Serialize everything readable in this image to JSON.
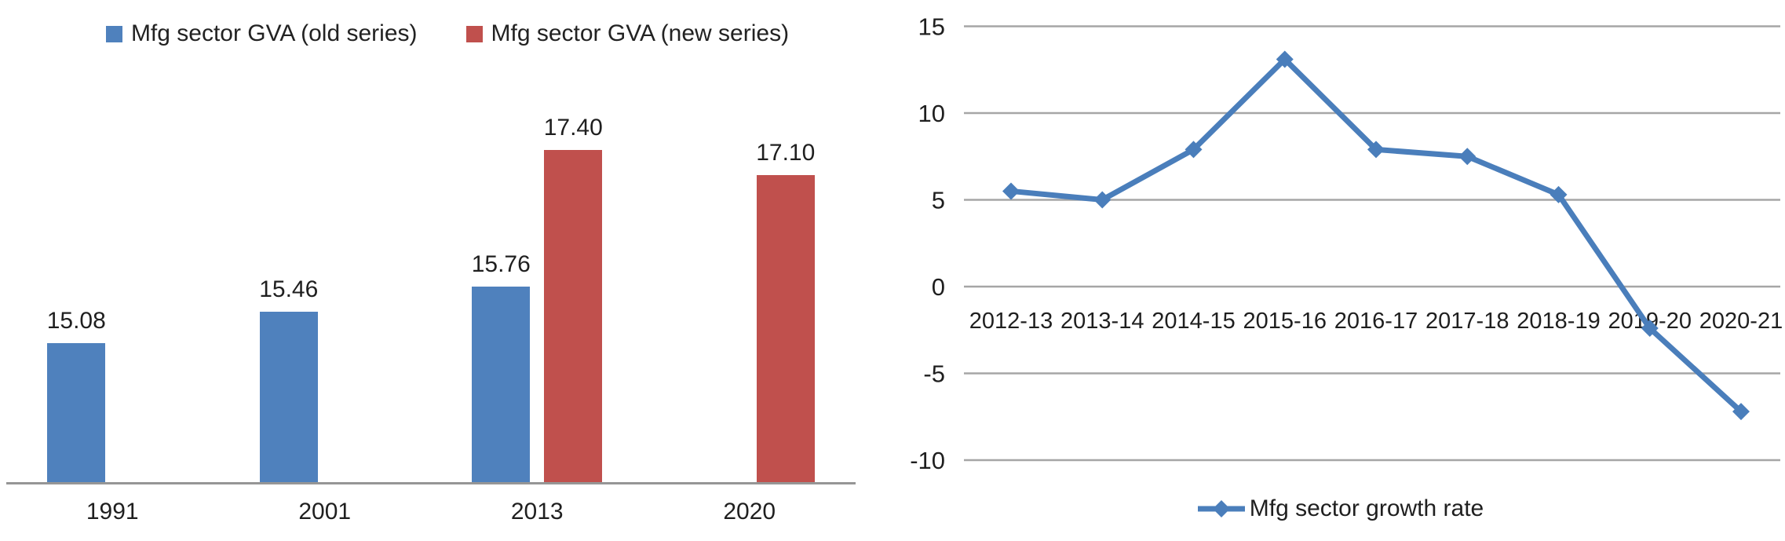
{
  "chart_data": [
    {
      "type": "bar",
      "title": "",
      "xlabel": "",
      "ylabel": "",
      "categories": [
        "1991",
        "2001",
        "2013",
        "2020"
      ],
      "series": [
        {
          "name": "Mfg sector GVA (old series)",
          "color": "#4f81bd",
          "values": [
            15.08,
            15.46,
            15.76,
            null
          ],
          "labels": [
            "15.08",
            "15.46",
            "15.76",
            null
          ]
        },
        {
          "name": "Mfg sector GVA (new series)",
          "color": "#c0504d",
          "values": [
            null,
            null,
            17.4,
            17.1
          ],
          "labels": [
            null,
            null,
            "17.40",
            "17.10"
          ]
        }
      ],
      "value_labels_shown": true,
      "legend_position": "top",
      "grid": false,
      "axis_color": "#969696",
      "ylim_implied": [
        13.4,
        18.2
      ]
    },
    {
      "type": "line",
      "title": "",
      "xlabel": "",
      "ylabel": "",
      "x": [
        "2012-13",
        "2013-14",
        "2014-15",
        "2015-16",
        "2016-17",
        "2017-18",
        "2018-19",
        "2019-20",
        "2020-21"
      ],
      "series": [
        {
          "name": "Mfg sector growth rate",
          "color": "#4a7ebb",
          "marker": "diamond",
          "values": [
            5.5,
            5.0,
            7.9,
            13.1,
            7.9,
            7.5,
            5.3,
            -2.4,
            -7.2
          ]
        }
      ],
      "yticks": [
        15,
        10,
        5,
        0,
        -5,
        -10
      ],
      "ytick_labels": [
        "15",
        "10",
        "5",
        "0",
        "-5",
        "-10"
      ],
      "ylim": [
        -12.5,
        16.5
      ],
      "grid": true,
      "gridline_color": "#a6a6a6",
      "legend_position": "bottom",
      "text_color": "#1f1f1f"
    }
  ]
}
